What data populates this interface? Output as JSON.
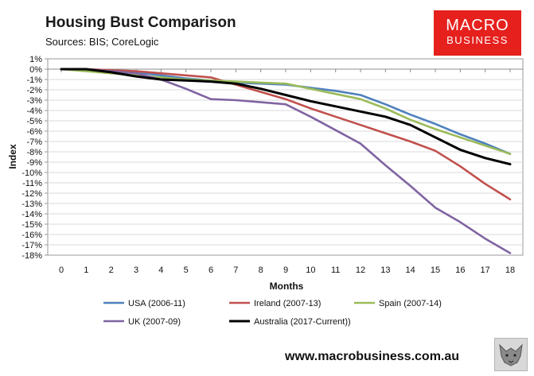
{
  "header": {
    "title": "Housing Bust Comparison",
    "sources": "Sources: BIS; CoreLogic"
  },
  "logo": {
    "line1": "MACRO",
    "line2": "BUSINESS",
    "color": "#e5201d"
  },
  "footer": {
    "website": "www.macrobusiness.com.au",
    "icon": "wolf-logo-icon"
  },
  "chart_data": {
    "type": "line",
    "title": "",
    "xlabel": "Months",
    "ylabel": "Index",
    "x": [
      0,
      1,
      2,
      3,
      4,
      5,
      6,
      7,
      8,
      9,
      10,
      11,
      12,
      13,
      14,
      15,
      16,
      17,
      18
    ],
    "xlim": [
      0,
      18
    ],
    "ylim": [
      -18,
      1
    ],
    "y_ticks": [
      "1%",
      "0%",
      "-1%",
      "-2%",
      "-3%",
      "-4%",
      "-5%",
      "-6%",
      "-7%",
      "-8%",
      "-9%",
      "-10%",
      "-11%",
      "-12%",
      "-13%",
      "-14%",
      "-15%",
      "-16%",
      "-17%",
      "-18%"
    ],
    "x_ticks": [
      "0",
      "1",
      "2",
      "3",
      "4",
      "5",
      "6",
      "7",
      "8",
      "9",
      "10",
      "11",
      "12",
      "13",
      "14",
      "15",
      "16",
      "17",
      "18"
    ],
    "grid": "horizontal",
    "legend_position": "bottom",
    "series": [
      {
        "name": "USA (2006-11)",
        "color": "#4f81bd",
        "values": [
          0,
          -0.1,
          -0.2,
          -0.3,
          -0.6,
          -0.9,
          -1.1,
          -1.3,
          -1.4,
          -1.5,
          -1.8,
          -2.1,
          -2.5,
          -3.4,
          -4.4,
          -5.3,
          -6.3,
          -7.2,
          -8.2
        ]
      },
      {
        "name": "Ireland (2007-13)",
        "color": "#c0504d",
        "values": [
          0,
          0,
          -0.1,
          -0.2,
          -0.4,
          -0.6,
          -0.8,
          -1.5,
          -2.2,
          -2.9,
          -3.8,
          -4.6,
          -5.4,
          -6.2,
          -7.0,
          -7.9,
          -9.4,
          -11.1,
          -12.6
        ]
      },
      {
        "name": "Spain (2007-14)",
        "color": "#9bbb59",
        "values": [
          0,
          -0.2,
          -0.4,
          -0.6,
          -0.8,
          -1.0,
          -1.1,
          -1.2,
          -1.3,
          -1.4,
          -1.9,
          -2.4,
          -2.9,
          -3.8,
          -4.9,
          -5.8,
          -6.6,
          -7.4,
          -8.2
        ]
      },
      {
        "name": "UK (2007-09)",
        "color": "#8064a2",
        "values": [
          0,
          0,
          -0.2,
          -0.4,
          -1.0,
          -1.9,
          -2.9,
          -3.0,
          -3.2,
          -3.4,
          -4.6,
          -5.9,
          -7.2,
          -9.3,
          -11.3,
          -13.4,
          -14.8,
          -16.4,
          -17.8
        ]
      },
      {
        "name": "Australia (2017-Current))",
        "color": "#000000",
        "values": [
          0,
          0,
          -0.3,
          -0.7,
          -1.0,
          -1.1,
          -1.2,
          -1.4,
          -1.9,
          -2.5,
          -3.1,
          -3.6,
          -4.1,
          -4.6,
          -5.4,
          -6.6,
          -7.8,
          -8.6,
          -9.2
        ]
      }
    ]
  }
}
